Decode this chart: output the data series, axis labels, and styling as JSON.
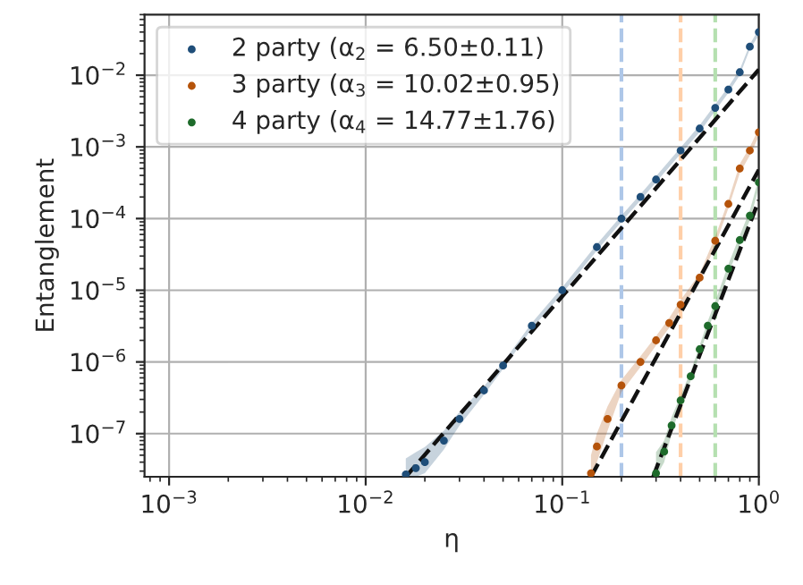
{
  "chart_data": {
    "type": "scatter",
    "xlabel": "η",
    "ylabel": "Entanglement",
    "log": "xy",
    "grid": true,
    "legend": "top left",
    "marker": "circle",
    "xlim": [
      0.00075,
      1
    ],
    "ylim": [
      2.5e-08,
      0.07
    ],
    "xticks": [
      {
        "value": 0.001,
        "label": "10$^{−3}$"
      },
      {
        "value": 0.01,
        "label": "10$^{−2}$"
      },
      {
        "value": 0.1,
        "label": "10$^{−1}$"
      },
      {
        "value": 1,
        "label": "10$^{0}$"
      }
    ],
    "yticks": [
      {
        "value": 1e-07,
        "label": "10$^{−7}$"
      },
      {
        "value": 1e-06,
        "label": "10$^{−6}$"
      },
      {
        "value": 1e-05,
        "label": "10$^{−5}$"
      },
      {
        "value": 0.0001,
        "label": "10$^{−4}$"
      },
      {
        "value": 0.001,
        "label": "10$^{−3}$"
      },
      {
        "value": 0.01,
        "label": "10$^{−2}$"
      }
    ],
    "ref_lines": [
      {
        "axis": "x",
        "value": 0.2,
        "color": "#aec7e8",
        "line_style": "dashed"
      },
      {
        "axis": "x",
        "value": 0.4,
        "color": "#ffcfa8",
        "line_style": "dashed"
      },
      {
        "axis": "x",
        "value": 0.6,
        "color": "#b5e0b0",
        "line_style": "dashed"
      }
    ],
    "series": [
      {
        "name": "2 party (α$_{2}$ = 6.50±0.11)",
        "color": "#1f4e79",
        "x": [
          0.016,
          0.018,
          0.02,
          0.025,
          0.03,
          0.04,
          0.05,
          0.07,
          0.1,
          0.15,
          0.2,
          0.25,
          0.3,
          0.4,
          0.5,
          0.6,
          0.7,
          0.8,
          0.9,
          1.0
        ],
        "values": [
          2.7e-08,
          3.3e-08,
          4e-08,
          8e-08,
          1.6e-07,
          4e-07,
          8.9e-07,
          3.2e-06,
          1e-05,
          4e-05,
          0.0001,
          0.0002,
          0.00035,
          0.00089,
          0.0018,
          0.0035,
          0.0063,
          0.011,
          0.025,
          0.04
        ],
        "lower": [
          2.5e-08,
          2.5e-08,
          2.8e-08,
          6e-08,
          1.3e-07,
          3.5e-07,
          8e-07,
          2.9e-06,
          9e-06,
          3.6e-05,
          9e-05,
          0.00018,
          0.00032,
          0.0008,
          0.0016,
          0.0032,
          0.0057,
          0.01,
          0.023,
          0.036
        ],
        "upper": [
          4.5e-08,
          5.5e-08,
          6.5e-08,
          1.1e-07,
          2e-07,
          4.6e-07,
          9.8e-07,
          3.5e-06,
          1.1e-05,
          4.4e-05,
          0.00011,
          0.00022,
          0.00039,
          0.00098,
          0.002,
          0.0039,
          0.0069,
          0.012,
          0.027,
          0.044
        ]
      },
      {
        "name": "3 party (α$_{3}$ = 10.02±0.95)",
        "color": "#b5530a",
        "x": [
          0.14,
          0.15,
          0.17,
          0.2,
          0.25,
          0.3,
          0.35,
          0.4,
          0.5,
          0.6,
          0.7,
          0.8,
          0.9,
          1.0
        ],
        "values": [
          2.8e-08,
          6.6e-08,
          1.6e-07,
          4.7e-07,
          1e-06,
          2e-06,
          3.5e-06,
          6.3e-06,
          1.5e-05,
          4.9e-05,
          0.00016,
          0.0005,
          0.00089,
          0.0016
        ],
        "lower": [
          2.5e-08,
          4e-08,
          1.1e-07,
          3.8e-07,
          8.5e-07,
          1.7e-06,
          3e-06,
          5.4e-06,
          1.3e-05,
          4.2e-05,
          0.00014,
          0.00043,
          0.00076,
          0.0014
        ],
        "upper": [
          5e-08,
          1e-07,
          2.4e-07,
          5.6e-07,
          1.2e-06,
          2.3e-06,
          4.1e-06,
          7.3e-06,
          1.7e-05,
          5.6e-05,
          0.00018,
          0.00058,
          0.001,
          0.0018
        ]
      },
      {
        "name": "4 party (α$_{4}$ = 14.77±1.76)",
        "color": "#1e6b2b",
        "x": [
          0.3,
          0.33,
          0.36,
          0.4,
          0.45,
          0.5,
          0.55,
          0.6,
          0.7,
          0.8,
          0.9,
          1.0
        ],
        "values": [
          2.8e-08,
          5.6e-08,
          1.3e-07,
          2.9e-07,
          6.3e-07,
          1.5e-06,
          3.2e-06,
          6e-06,
          2e-05,
          5e-05,
          0.00011,
          0.00032
        ],
        "lower": [
          2.5e-08,
          4e-08,
          1e-07,
          2.5e-07,
          5.4e-07,
          1.3e-06,
          2.8e-06,
          5.2e-06,
          1.7e-05,
          4.3e-05,
          9.5e-05,
          0.00027
        ],
        "upper": [
          5.5e-08,
          8e-08,
          1.7e-07,
          3.4e-07,
          7.3e-07,
          1.7e-06,
          3.7e-06,
          7e-06,
          2.3e-05,
          5.8e-05,
          0.00013,
          0.00037
        ]
      },
      {
        "type": "line",
        "color": "#111111",
        "line_style": "dashed",
        "marker": "none",
        "x": [
          0.016,
          1.0
        ],
        "values": [
          2.5e-08,
          0.012
        ]
      },
      {
        "type": "line",
        "color": "#111111",
        "line_style": "dashed",
        "marker": "none",
        "x": [
          0.14,
          1.0
        ],
        "values": [
          2.5e-08,
          0.00048
        ]
      },
      {
        "type": "line",
        "color": "#111111",
        "line_style": "dashed",
        "marker": "none",
        "x": [
          0.29,
          1.0
        ],
        "values": [
          2.5e-08,
          0.00018
        ]
      }
    ]
  }
}
